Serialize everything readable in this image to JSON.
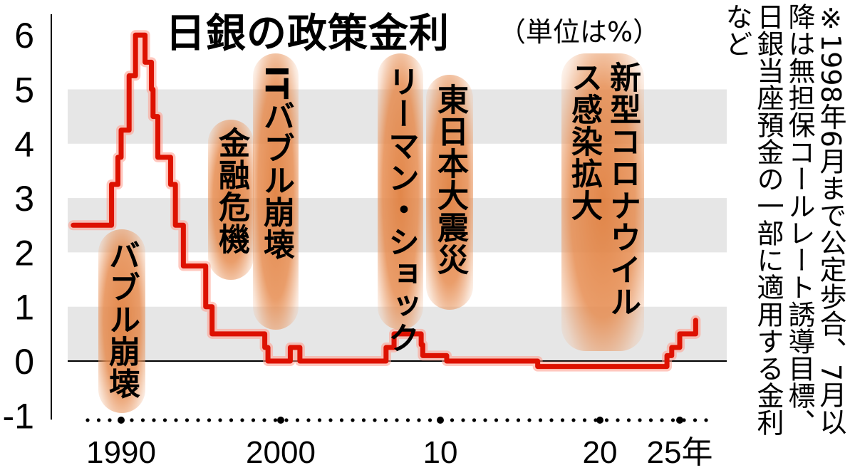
{
  "title": "日銀の政策金利",
  "unit_note": "（単位は%）",
  "footnote": "※1998年6月まで公定歩合、7月以降は無担保コールレート誘導目標、日銀当座預金の一部に適用する金利など",
  "colors": {
    "line": "#dd1100",
    "band": "#e6e6e6",
    "highlight": "#e08040",
    "text": "#000000"
  },
  "events": [
    {
      "label": "バブル崩壊",
      "year": 1990.5
    },
    {
      "label": "金融危機",
      "year": 1997.5
    },
    {
      "label": "ITバブル崩壊",
      "year": 2000.5
    },
    {
      "label": "リーマン・ショック",
      "year": 2008.5
    },
    {
      "label": "東日本大震災",
      "year": 2011.5
    },
    {
      "label": "新型コロナウイルス感染拡大",
      "year": 2020.3
    }
  ],
  "chart_data": {
    "type": "line",
    "title": "日銀の政策金利",
    "xlabel": "",
    "ylabel": "",
    "x_tick_labels": [
      "1990",
      "2000",
      "10",
      "20",
      "25年"
    ],
    "x_tick_years": [
      1990,
      2000,
      2010,
      2020,
      2025
    ],
    "y_tick_labels": [
      "6",
      "5",
      "4",
      "3",
      "2",
      "1",
      "0",
      "-1"
    ],
    "ylim": [
      -1,
      6
    ],
    "xlim": [
      1987.3,
      2026.8
    ],
    "grid": "alternating bands",
    "series": [
      {
        "values": [
          {
            "x": 1987.0,
            "y": 2.5
          },
          {
            "x": 1989.4,
            "y": 3.25
          },
          {
            "x": 1989.8,
            "y": 3.75
          },
          {
            "x": 1990.0,
            "y": 4.25
          },
          {
            "x": 1990.5,
            "y": 5.25
          },
          {
            "x": 1990.9,
            "y": 6.0
          },
          {
            "x": 1991.5,
            "y": 5.5
          },
          {
            "x": 1991.9,
            "y": 5.0
          },
          {
            "x": 1992.0,
            "y": 4.5
          },
          {
            "x": 1992.3,
            "y": 3.75
          },
          {
            "x": 1993.1,
            "y": 3.25
          },
          {
            "x": 1993.4,
            "y": 2.5
          },
          {
            "x": 1993.9,
            "y": 1.75
          },
          {
            "x": 1995.3,
            "y": 1.0
          },
          {
            "x": 1995.7,
            "y": 0.5
          },
          {
            "x": 1999.0,
            "y": 0.25
          },
          {
            "x": 1999.2,
            "y": 0.0
          },
          {
            "x": 2000.6,
            "y": 0.25
          },
          {
            "x": 2001.2,
            "y": 0.0
          },
          {
            "x": 2006.6,
            "y": 0.25
          },
          {
            "x": 2007.1,
            "y": 0.5
          },
          {
            "x": 2008.8,
            "y": 0.3
          },
          {
            "x": 2008.9,
            "y": 0.1
          },
          {
            "x": 2010.4,
            "y": 0.0
          },
          {
            "x": 2016.1,
            "y": -0.1
          },
          {
            "x": 2024.2,
            "y": 0.1
          },
          {
            "x": 2024.5,
            "y": 0.25
          },
          {
            "x": 2025.0,
            "y": 0.5
          },
          {
            "x": 2026.0,
            "y": 0.75
          }
        ]
      }
    ]
  }
}
